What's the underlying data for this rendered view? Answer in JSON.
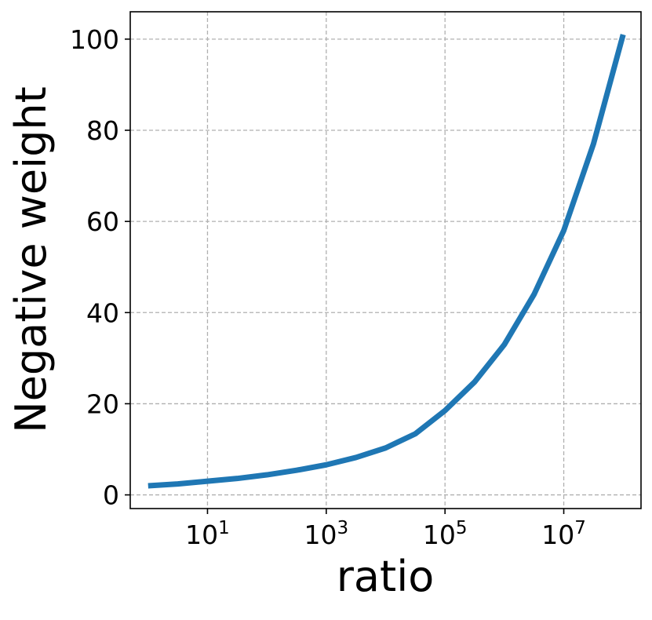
{
  "chart_data": {
    "type": "line",
    "title": "",
    "xlabel": "ratio",
    "ylabel": "Negative weight",
    "xscale": "log",
    "xlim": [
      0.5,
      200000000
    ],
    "ylim": [
      -3,
      106
    ],
    "grid": true,
    "line_color": "#1f77b4",
    "x_ticks": [
      {
        "value": 10,
        "base": "10",
        "exp": "1"
      },
      {
        "value": 1000,
        "base": "10",
        "exp": "3"
      },
      {
        "value": 100000,
        "base": "10",
        "exp": "5"
      },
      {
        "value": 10000000,
        "base": "10",
        "exp": "7"
      }
    ],
    "y_ticks": [
      {
        "value": 0,
        "label": "0"
      },
      {
        "value": 20,
        "label": "20"
      },
      {
        "value": 40,
        "label": "40"
      },
      {
        "value": 60,
        "label": "60"
      },
      {
        "value": 80,
        "label": "80"
      },
      {
        "value": 100,
        "label": "100"
      }
    ],
    "series": [
      {
        "x": [
          1,
          3.16,
          10,
          31.6,
          100,
          316,
          1000,
          3162,
          10000,
          31623,
          100000,
          316228,
          1000000,
          3162278,
          10000000,
          31622777,
          100000000
        ],
        "y": [
          2.0,
          2.4,
          3.0,
          3.6,
          4.4,
          5.4,
          6.6,
          8.2,
          10.3,
          13.4,
          18.5,
          24.8,
          33.0,
          44.0,
          58.0,
          77.0,
          101.0
        ]
      }
    ]
  }
}
